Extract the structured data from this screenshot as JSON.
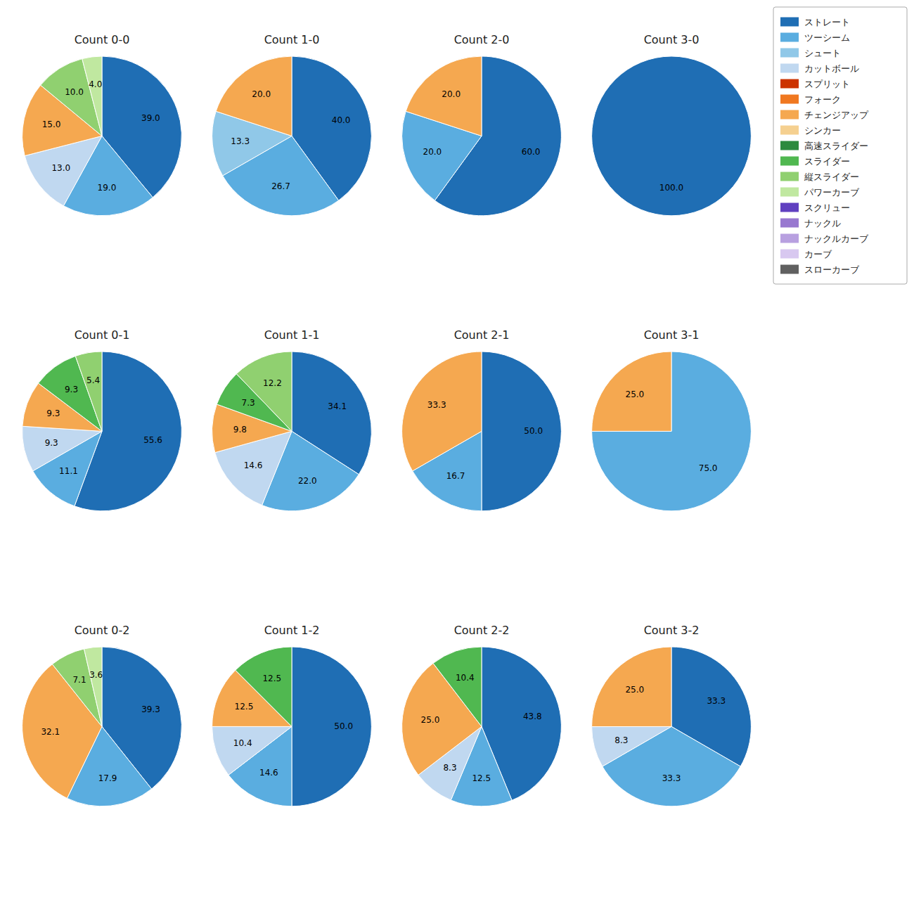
{
  "chart_data": [
    {
      "type": "pie",
      "title": "Count 0-0",
      "categories": [
        "ストレート",
        "ツーシーム",
        "カットボール",
        "チェンジアップ",
        "縦スライダー",
        "パワーカーブ"
      ],
      "values": [
        39.0,
        19.0,
        13.0,
        15.0,
        10.0,
        4.0
      ],
      "value_labels": [
        "39.0",
        "19.0",
        "13.0",
        "15.0",
        "10.0",
        "4.0"
      ],
      "colors": [
        "#1f6eb4",
        "#5aade0",
        "#c0d8f0",
        "#f5a850",
        "#90d070",
        "#c0e8a0"
      ],
      "data_labels": true
    },
    {
      "type": "pie",
      "title": "Count 1-0",
      "categories": [
        "ストレート",
        "ツーシーム",
        "シュート",
        "チェンジアップ"
      ],
      "values": [
        40.0,
        26.7,
        13.3,
        20.0
      ],
      "value_labels": [
        "40.0",
        "26.7",
        "13.3",
        "20.0"
      ],
      "colors": [
        "#1f6eb4",
        "#5aade0",
        "#90c8e8",
        "#f5a850"
      ],
      "data_labels": true
    },
    {
      "type": "pie",
      "title": "Count 2-0",
      "categories": [
        "ストレート",
        "ツーシーム",
        "チェンジアップ"
      ],
      "values": [
        60.0,
        20.0,
        20.0
      ],
      "value_labels": [
        "60.0",
        "20.0",
        "20.0"
      ],
      "colors": [
        "#1f6eb4",
        "#5aade0",
        "#f5a850"
      ],
      "data_labels": true
    },
    {
      "type": "pie",
      "title": "Count 3-0",
      "categories": [
        "ストレート"
      ],
      "values": [
        100.0
      ],
      "value_labels": [
        "100.0"
      ],
      "colors": [
        "#1f6eb4"
      ],
      "data_labels": true
    },
    {
      "type": "pie",
      "title": "Count 0-1",
      "categories": [
        "ストレート",
        "ツーシーム",
        "カットボール",
        "チェンジアップ",
        "スライダー",
        "縦スライダー"
      ],
      "values": [
        55.6,
        11.1,
        9.3,
        9.3,
        9.3,
        5.4
      ],
      "value_labels": [
        "55.6",
        "11.1",
        "9.3",
        "9.3",
        "9.3",
        "5.4"
      ],
      "colors": [
        "#1f6eb4",
        "#5aade0",
        "#c0d8f0",
        "#f5a850",
        "#50b850",
        "#90d070"
      ],
      "data_labels": true
    },
    {
      "type": "pie",
      "title": "Count 1-1",
      "categories": [
        "ストレート",
        "ツーシーム",
        "カットボール",
        "チェンジアップ",
        "スライダー",
        "縦スライダー"
      ],
      "values": [
        34.1,
        22.0,
        14.6,
        9.8,
        7.3,
        12.2
      ],
      "value_labels": [
        "34.1",
        "22.0",
        "14.6",
        "9.8",
        "7.3",
        "12.2"
      ],
      "colors": [
        "#1f6eb4",
        "#5aade0",
        "#c0d8f0",
        "#f5a850",
        "#50b850",
        "#90d070"
      ],
      "data_labels": true
    },
    {
      "type": "pie",
      "title": "Count 2-1",
      "categories": [
        "ストレート",
        "ツーシーム",
        "チェンジアップ"
      ],
      "values": [
        50.0,
        16.7,
        33.3
      ],
      "value_labels": [
        "50.0",
        "16.7",
        "33.3"
      ],
      "colors": [
        "#1f6eb4",
        "#5aade0",
        "#f5a850"
      ],
      "data_labels": true
    },
    {
      "type": "pie",
      "title": "Count 3-1",
      "categories": [
        "ツーシーム",
        "チェンジアップ"
      ],
      "values": [
        75.0,
        25.0
      ],
      "value_labels": [
        "75.0",
        "25.0"
      ],
      "colors": [
        "#5aade0",
        "#f5a850"
      ],
      "data_labels": true
    },
    {
      "type": "pie",
      "title": "Count 0-2",
      "categories": [
        "ストレート",
        "ツーシーム",
        "チェンジアップ",
        "縦スライダー",
        "パワーカーブ"
      ],
      "values": [
        39.3,
        17.9,
        32.1,
        7.1,
        3.6
      ],
      "value_labels": [
        "39.3",
        "17.9",
        "32.1",
        "7.1",
        "3.6"
      ],
      "colors": [
        "#1f6eb4",
        "#5aade0",
        "#f5a850",
        "#90d070",
        "#c0e8a0"
      ],
      "data_labels": true
    },
    {
      "type": "pie",
      "title": "Count 1-2",
      "categories": [
        "ストレート",
        "ツーシーム",
        "カットボール",
        "チェンジアップ",
        "スライダー"
      ],
      "values": [
        50.0,
        14.6,
        10.4,
        12.5,
        12.5
      ],
      "value_labels": [
        "50.0",
        "14.6",
        "10.4",
        "12.5",
        "12.5"
      ],
      "colors": [
        "#1f6eb4",
        "#5aade0",
        "#c0d8f0",
        "#f5a850",
        "#50b850"
      ],
      "data_labels": true
    },
    {
      "type": "pie",
      "title": "Count 2-2",
      "categories": [
        "ストレート",
        "ツーシーム",
        "カットボール",
        "チェンジアップ",
        "スライダー"
      ],
      "values": [
        43.8,
        12.5,
        8.3,
        25.0,
        10.4
      ],
      "value_labels": [
        "43.8",
        "12.5",
        "8.3",
        "25.0",
        "10.4"
      ],
      "colors": [
        "#1f6eb4",
        "#5aade0",
        "#c0d8f0",
        "#f5a850",
        "#50b850"
      ],
      "data_labels": true
    },
    {
      "type": "pie",
      "title": "Count 3-2",
      "categories": [
        "ストレート",
        "ツーシーム",
        "カットボール",
        "チェンジアップ"
      ],
      "values": [
        33.3,
        33.3,
        8.3,
        25.0
      ],
      "value_labels": [
        "33.3",
        "33.3",
        "8.3",
        "25.0"
      ],
      "colors": [
        "#1f6eb4",
        "#5aade0",
        "#c0d8f0",
        "#f5a850"
      ],
      "data_labels": true
    },
    {
      "type": "legend",
      "legend": "upper right",
      "series": [
        {
          "name": "ストレート",
          "color": "#1f6eb4"
        },
        {
          "name": "ツーシーム",
          "color": "#5aade0"
        },
        {
          "name": "シュート",
          "color": "#90c8e8"
        },
        {
          "name": "カットボール",
          "color": "#c0d8f0"
        },
        {
          "name": "スプリット",
          "color": "#cc3300"
        },
        {
          "name": "フォーク",
          "color": "#f07820"
        },
        {
          "name": "チェンジアップ",
          "color": "#f5a850"
        },
        {
          "name": "シンカー",
          "color": "#f5d090"
        },
        {
          "name": "高速スライダー",
          "color": "#2d8a3e"
        },
        {
          "name": "スライダー",
          "color": "#50b850"
        },
        {
          "name": "縦スライダー",
          "color": "#90d070"
        },
        {
          "name": "パワーカーブ",
          "color": "#c0e8a0"
        },
        {
          "name": "スクリュー",
          "color": "#6040c0"
        },
        {
          "name": "ナックル",
          "color": "#9878d0"
        },
        {
          "name": "ナックルカーブ",
          "color": "#b8a0e0"
        },
        {
          "name": "カーブ",
          "color": "#d8c8f0"
        },
        {
          "name": "スローカーブ",
          "color": "#606060"
        }
      ]
    }
  ]
}
